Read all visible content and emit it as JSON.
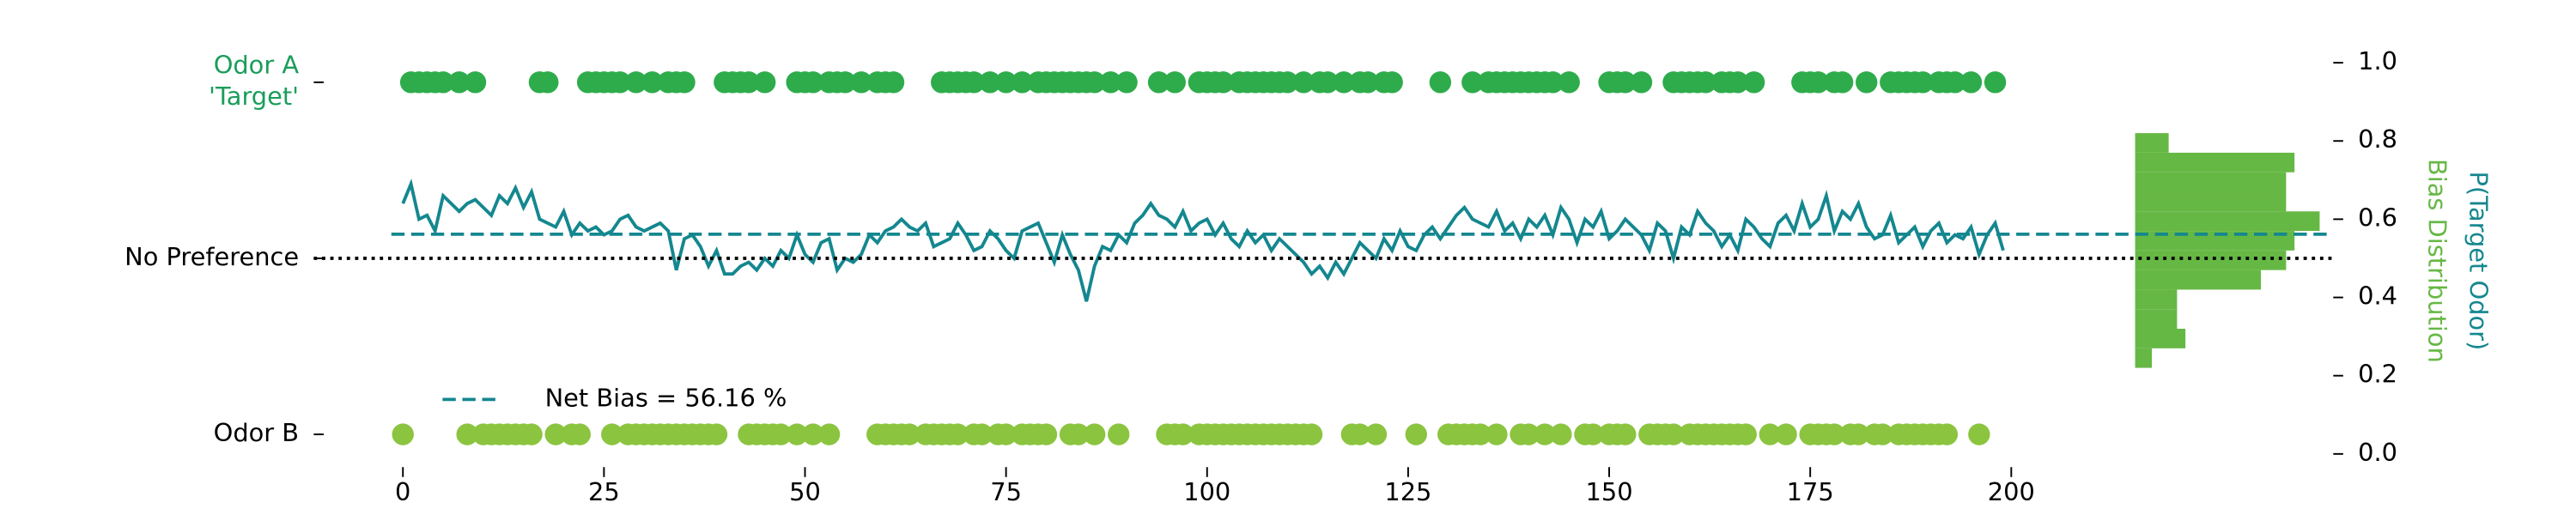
{
  "chart_data": [
    {
      "type": "scatter",
      "xlim": [
        -2,
        202
      ],
      "xticks": [
        0,
        25,
        50,
        75,
        100,
        125,
        150,
        175,
        200
      ],
      "ylim": [
        -0.05,
        1.05
      ],
      "yticks": [
        {
          "value": 0.05,
          "label": "Odor B"
        },
        {
          "value": 0.5,
          "label": "No Preference"
        },
        {
          "value": 0.95,
          "label": "Odor A\n'Target'"
        }
      ],
      "y2lim": [
        -0.05,
        1.05
      ],
      "y2ticks": [
        {
          "value": 0,
          "label": "0.0"
        },
        {
          "value": 0.2,
          "label": "0.2"
        },
        {
          "value": 0.4,
          "label": "0.4"
        },
        {
          "value": 0.6,
          "label": "0.6"
        },
        {
          "value": 0.8,
          "label": "0.8"
        },
        {
          "value": 1,
          "label": "1.0"
        }
      ],
      "y2label": "P(Target Odor)",
      "legend": "lower left",
      "series": [
        {
          "mode": "markers",
          "color": "#2eac4b",
          "y": 0.95,
          "x": [
            1,
            2,
            3,
            4,
            5,
            7,
            9,
            17,
            18,
            23,
            24,
            25,
            26,
            27,
            29,
            31,
            33,
            34,
            35,
            40,
            41,
            42,
            43,
            45,
            49,
            50,
            51,
            53,
            54,
            55,
            57,
            59,
            60,
            61,
            67,
            68,
            69,
            70,
            71,
            73,
            75,
            77,
            79,
            80,
            81,
            82,
            83,
            84,
            85,
            86,
            88,
            90,
            94,
            96,
            99,
            100,
            101,
            102,
            104,
            105,
            106,
            107,
            108,
            109,
            110,
            112,
            114,
            115,
            117,
            119,
            120,
            122,
            123,
            129,
            133,
            135,
            136,
            137,
            138,
            139,
            140,
            141,
            142,
            143,
            145,
            150,
            151,
            152,
            154,
            158,
            159,
            160,
            161,
            162,
            164,
            165,
            166,
            168,
            174,
            175,
            176,
            178,
            179,
            182,
            185,
            186,
            187,
            188,
            189,
            191,
            192,
            193,
            195,
            198
          ]
        },
        {
          "mode": "markers",
          "color": "#8bc43f",
          "y": 0.05,
          "x": [
            0,
            8,
            10,
            11,
            12,
            13,
            14,
            15,
            16,
            19,
            21,
            22,
            26,
            28,
            29,
            30,
            31,
            32,
            33,
            34,
            35,
            36,
            37,
            38,
            39,
            43,
            44,
            45,
            46,
            47,
            49,
            51,
            53,
            59,
            60,
            61,
            62,
            63,
            65,
            66,
            67,
            68,
            69,
            71,
            72,
            74,
            75,
            77,
            78,
            79,
            80,
            83,
            84,
            86,
            89,
            95,
            96,
            97,
            99,
            100,
            101,
            102,
            103,
            104,
            105,
            106,
            107,
            108,
            109,
            110,
            111,
            112,
            113,
            118,
            119,
            121,
            126,
            130,
            131,
            132,
            133,
            134,
            136,
            139,
            140,
            142,
            144,
            147,
            148,
            150,
            151,
            152,
            155,
            156,
            157,
            158,
            160,
            161,
            162,
            163,
            164,
            165,
            166,
            167,
            170,
            172,
            175,
            176,
            177,
            178,
            180,
            181,
            183,
            184,
            186,
            187,
            188,
            189,
            190,
            191,
            192,
            196
          ]
        },
        {
          "mode": "lines",
          "color": "#14878f",
          "x": [
            0,
            1,
            2,
            3,
            4,
            5,
            6,
            7,
            8,
            9,
            10,
            11,
            12,
            13,
            14,
            15,
            16,
            17,
            18,
            19,
            20,
            21,
            22,
            23,
            24,
            25,
            26,
            27,
            28,
            29,
            30,
            31,
            32,
            33,
            34,
            35,
            36,
            37,
            38,
            39,
            40,
            41,
            42,
            43,
            44,
            45,
            46,
            47,
            48,
            49,
            50,
            51,
            52,
            53,
            54,
            55,
            56,
            57,
            58,
            59,
            60,
            61,
            62,
            63,
            64,
            65,
            66,
            67,
            68,
            69,
            70,
            71,
            72,
            73,
            74,
            75,
            76,
            77,
            78,
            79,
            80,
            81,
            82,
            83,
            84,
            85,
            86,
            87,
            88,
            89,
            90,
            91,
            92,
            93,
            94,
            95,
            96,
            97,
            98,
            99,
            100,
            101,
            102,
            103,
            104,
            105,
            106,
            107,
            108,
            109,
            110,
            111,
            112,
            113,
            114,
            115,
            116,
            117,
            118,
            119,
            120,
            121,
            122,
            123,
            124,
            125,
            126,
            127,
            128,
            129,
            130,
            131,
            132,
            133,
            134,
            135,
            136,
            137,
            138,
            139,
            140,
            141,
            142,
            143,
            144,
            145,
            146,
            147,
            148,
            149,
            150,
            151,
            152,
            153,
            154,
            155,
            156,
            157,
            158,
            159,
            160,
            161,
            162,
            163,
            164,
            165,
            166,
            167,
            168,
            169,
            170,
            171,
            172,
            173,
            174,
            175,
            176,
            177,
            178,
            179,
            180,
            181,
            182,
            183,
            184,
            185,
            186,
            187,
            188,
            189,
            190,
            191,
            192,
            193,
            194,
            195,
            196,
            197,
            198,
            199
          ],
          "values": [
            0.64,
            0.69,
            0.6,
            0.61,
            0.57,
            0.66,
            0.64,
            0.62,
            0.64,
            0.65,
            0.63,
            0.61,
            0.66,
            0.64,
            0.68,
            0.63,
            0.67,
            0.6,
            0.59,
            0.58,
            0.62,
            0.56,
            0.59,
            0.57,
            0.58,
            0.56,
            0.57,
            0.6,
            0.61,
            0.58,
            0.57,
            0.58,
            0.59,
            0.57,
            0.47,
            0.55,
            0.56,
            0.53,
            0.48,
            0.52,
            0.46,
            0.46,
            0.48,
            0.49,
            0.47,
            0.5,
            0.48,
            0.52,
            0.5,
            0.56,
            0.51,
            0.49,
            0.54,
            0.55,
            0.47,
            0.5,
            0.49,
            0.51,
            0.56,
            0.54,
            0.57,
            0.58,
            0.6,
            0.58,
            0.57,
            0.59,
            0.53,
            0.54,
            0.55,
            0.59,
            0.56,
            0.52,
            0.53,
            0.57,
            0.55,
            0.52,
            0.5,
            0.57,
            0.58,
            0.59,
            0.54,
            0.49,
            0.56,
            0.51,
            0.47,
            0.39,
            0.48,
            0.53,
            0.52,
            0.56,
            0.54,
            0.59,
            0.61,
            0.64,
            0.61,
            0.6,
            0.58,
            0.62,
            0.57,
            0.59,
            0.6,
            0.56,
            0.59,
            0.55,
            0.53,
            0.57,
            0.54,
            0.56,
            0.52,
            0.55,
            0.53,
            0.51,
            0.49,
            0.46,
            0.48,
            0.45,
            0.49,
            0.46,
            0.5,
            0.54,
            0.52,
            0.5,
            0.55,
            0.52,
            0.57,
            0.53,
            0.52,
            0.56,
            0.58,
            0.55,
            0.58,
            0.61,
            0.63,
            0.6,
            0.59,
            0.58,
            0.62,
            0.57,
            0.59,
            0.55,
            0.6,
            0.58,
            0.61,
            0.56,
            0.63,
            0.6,
            0.54,
            0.6,
            0.58,
            0.62,
            0.55,
            0.57,
            0.6,
            0.58,
            0.56,
            0.52,
            0.59,
            0.57,
            0.5,
            0.58,
            0.56,
            0.62,
            0.59,
            0.57,
            0.53,
            0.56,
            0.52,
            0.6,
            0.58,
            0.55,
            0.53,
            0.59,
            0.61,
            0.57,
            0.64,
            0.58,
            0.6,
            0.66,
            0.57,
            0.62,
            0.6,
            0.64,
            0.58,
            0.55,
            0.56,
            0.61,
            0.54,
            0.56,
            0.58,
            0.53,
            0.57,
            0.59,
            0.54,
            0.56,
            0.55,
            0.58,
            0.51,
            0.56,
            0.59,
            0.52
          ]
        },
        {
          "mode": "hline",
          "color": "#000000",
          "dash": "dotted",
          "values": [
            0.5
          ]
        },
        {
          "mode": "hline",
          "name": "Net Bias = 56.16 %",
          "color": "#14878f",
          "dash": "dashed",
          "values": [
            0.5616
          ]
        }
      ]
    },
    {
      "type": "histogram",
      "orientation": "horizontal",
      "color": "#66b845",
      "ylabel": "Bias Distribution",
      "xlim": [
        0,
        25
      ],
      "ylim": [
        -0.05,
        1.05
      ],
      "bins": [
        0.22,
        0.27,
        0.32,
        0.37,
        0.42,
        0.47,
        0.52,
        0.57,
        0.62,
        0.67,
        0.72,
        0.77,
        0.82
      ],
      "values": [
        2,
        6,
        5,
        5,
        15,
        18,
        19,
        22,
        18,
        18,
        19,
        4
      ]
    }
  ]
}
